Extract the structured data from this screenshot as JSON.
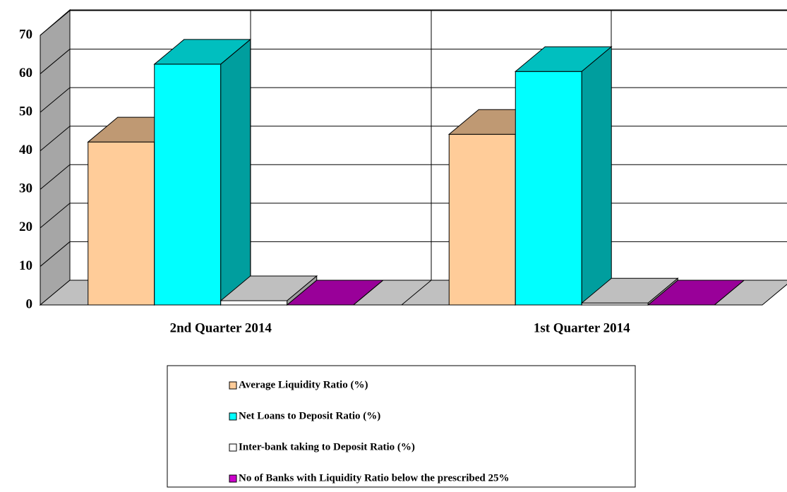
{
  "chart_data": {
    "type": "bar",
    "categories": [
      "2nd Quarter 2014",
      "1st Quarter 2014"
    ],
    "series": [
      {
        "name": "Average Liquidity Ratio (%)",
        "color": "#ffcc99",
        "values": [
          42.3,
          44.3
        ]
      },
      {
        "name": "Net Loans to Deposit Ratio (%)",
        "color": "#00ffff",
        "values": [
          62.5,
          60.6
        ]
      },
      {
        "name": "Inter-bank taking to Deposit Ratio (%)",
        "color": "#ffffff",
        "values": [
          1.1,
          0.5
        ]
      },
      {
        "name": "No of Banks with Liquidity Ratio below the prescribed 25%",
        "color": "#cc00cc",
        "values": [
          0,
          0
        ]
      }
    ],
    "ylim": [
      0,
      70
    ],
    "yticks": [
      0,
      10,
      20,
      30,
      40,
      50,
      60,
      70
    ],
    "grid": true,
    "legend": "bottom"
  }
}
